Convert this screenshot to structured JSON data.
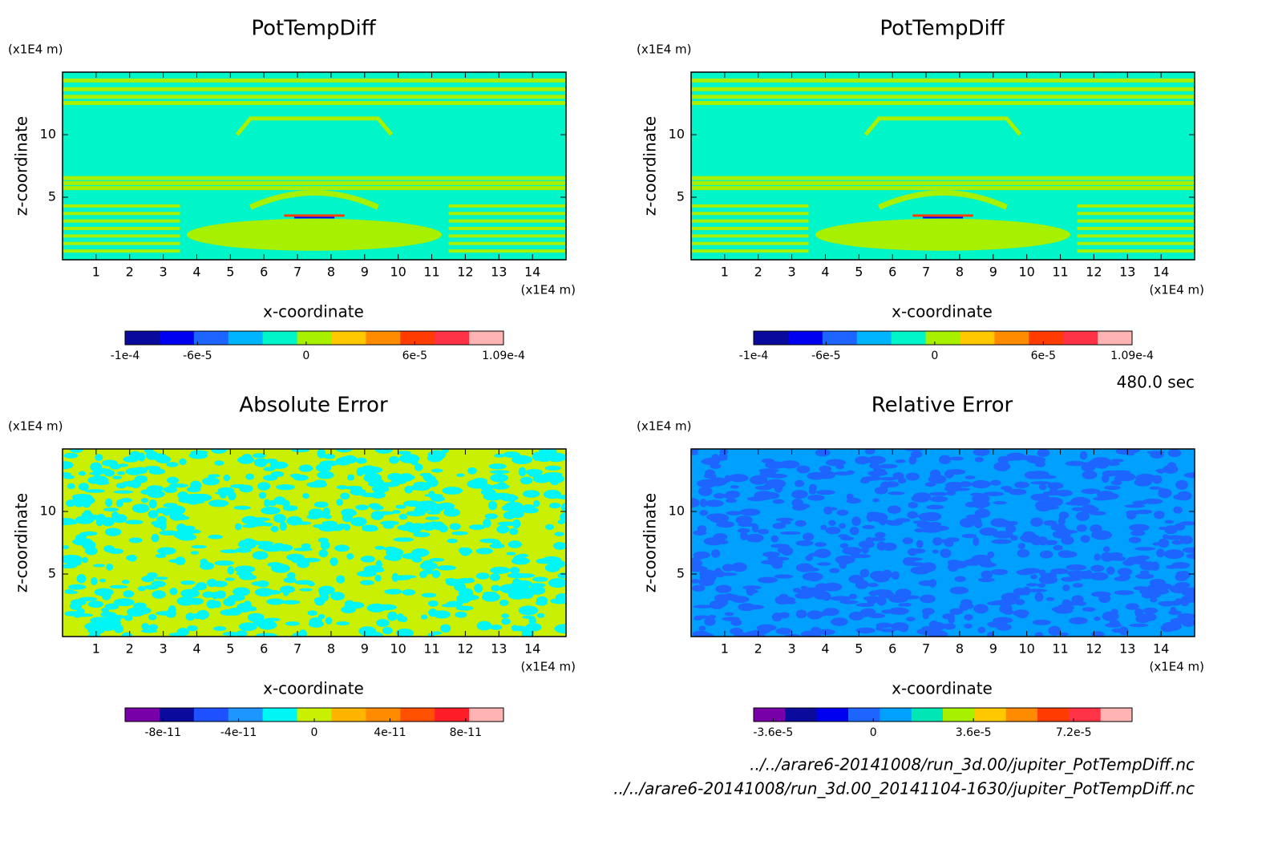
{
  "chart_data": [
    {
      "type": "contour",
      "title": "PotTempDiff",
      "x_label": "x-coordinate",
      "y_label": "z-coordinate",
      "x_unit": "(x1E4 m)",
      "y_unit": "(x1E4 m)",
      "xlim": [
        0,
        15
      ],
      "ylim": [
        0,
        15
      ],
      "xticks": [
        1,
        2,
        3,
        4,
        5,
        6,
        7,
        8,
        9,
        10,
        11,
        12,
        13,
        14
      ],
      "yticks": [
        5,
        10
      ],
      "colorbar": {
        "colors": [
          "#0a0a9c",
          "#0000f0",
          "#1e64ff",
          "#00b4ff",
          "#00f5c8",
          "#a6f000",
          "#ffc800",
          "#ff8c00",
          "#ff3c00",
          "#ff3246",
          "#ffb4b4"
        ],
        "clim": [
          -0.0001,
          0.000109
        ],
        "ticks": [
          {
            "value": -0.0001,
            "label": "-1e-4"
          },
          {
            "value": -6e-05,
            "label": "-6e-5"
          },
          0,
          {
            "value": 6e-05,
            "label": "6e-5"
          },
          {
            "value": 0.000109,
            "label": "1.09e-4"
          }
        ]
      }
    },
    {
      "type": "contour",
      "title": "PotTempDiff",
      "x_label": "x-coordinate",
      "y_label": "z-coordinate",
      "x_unit": "(x1E4 m)",
      "y_unit": "(x1E4 m)",
      "xlim": [
        0,
        15
      ],
      "ylim": [
        0,
        15
      ],
      "xticks": [
        1,
        2,
        3,
        4,
        5,
        6,
        7,
        8,
        9,
        10,
        11,
        12,
        13,
        14
      ],
      "yticks": [
        5,
        10
      ],
      "colorbar": {
        "colors": [
          "#0a0a9c",
          "#0000f0",
          "#1e64ff",
          "#00b4ff",
          "#00f5c8",
          "#a6f000",
          "#ffc800",
          "#ff8c00",
          "#ff3c00",
          "#ff3246",
          "#ffb4b4"
        ],
        "clim": [
          -0.0001,
          0.000109
        ],
        "ticks": [
          {
            "value": -0.0001,
            "label": "-1e-4"
          },
          {
            "value": -6e-05,
            "label": "-6e-5"
          },
          0,
          {
            "value": 6e-05,
            "label": "6e-5"
          },
          {
            "value": 0.000109,
            "label": "1.09e-4"
          }
        ]
      }
    },
    {
      "type": "contour",
      "title": "Absolute Error",
      "x_label": "x-coordinate",
      "y_label": "z-coordinate",
      "x_unit": "(x1E4 m)",
      "y_unit": "(x1E4 m)",
      "xlim": [
        0,
        15
      ],
      "ylim": [
        0,
        15
      ],
      "xticks": [
        1,
        2,
        3,
        4,
        5,
        6,
        7,
        8,
        9,
        10,
        11,
        12,
        13,
        14
      ],
      "yticks": [
        5,
        10
      ],
      "colorbar": {
        "colors": [
          "#7800a8",
          "#0a0a9c",
          "#1e50ff",
          "#1e96ff",
          "#00f5f5",
          "#c8f000",
          "#ffb400",
          "#ff8c00",
          "#ff5000",
          "#ff1e28",
          "#ffb4b4"
        ],
        "clim": [
          -1e-10,
          1e-10
        ],
        "ticks": [
          {
            "value": -8e-11,
            "label": "-8e-11"
          },
          {
            "value": -4e-11,
            "label": "-4e-11"
          },
          0,
          {
            "value": 4e-11,
            "label": "4e-11"
          },
          {
            "value": 8e-11,
            "label": "8e-11"
          }
        ]
      }
    },
    {
      "type": "contour",
      "title": "Relative Error",
      "x_label": "x-coordinate",
      "y_label": "z-coordinate",
      "x_unit": "(x1E4 m)",
      "y_unit": "(x1E4 m)",
      "xlim": [
        0,
        15
      ],
      "ylim": [
        0,
        15
      ],
      "xticks": [
        1,
        2,
        3,
        4,
        5,
        6,
        7,
        8,
        9,
        10,
        11,
        12,
        13,
        14
      ],
      "yticks": [
        5,
        10
      ],
      "colorbar": {
        "colors": [
          "#7800a8",
          "#0a0a9c",
          "#0000f0",
          "#1e64ff",
          "#00a0ff",
          "#00e6b4",
          "#a6f000",
          "#ffc800",
          "#ff8c00",
          "#ff3c00",
          "#ff3246",
          "#ffb4b4"
        ],
        "clim": [
          -4.3e-05,
          9.3e-05
        ],
        "ticks": [
          {
            "value": -3.6e-05,
            "label": "-3.6e-5"
          },
          0,
          {
            "value": 3.6e-05,
            "label": "3.6e-5"
          },
          {
            "value": 7.2e-05,
            "label": "7.2e-5"
          }
        ]
      }
    }
  ],
  "time_label": "480.0 sec",
  "files": [
    "../../arare6-20141008/run_3d.00/jupiter_PotTempDiff.nc",
    "../../arare6-20141008/run_3d.00_20141104-1630/jupiter_PotTempDiff.nc"
  ]
}
